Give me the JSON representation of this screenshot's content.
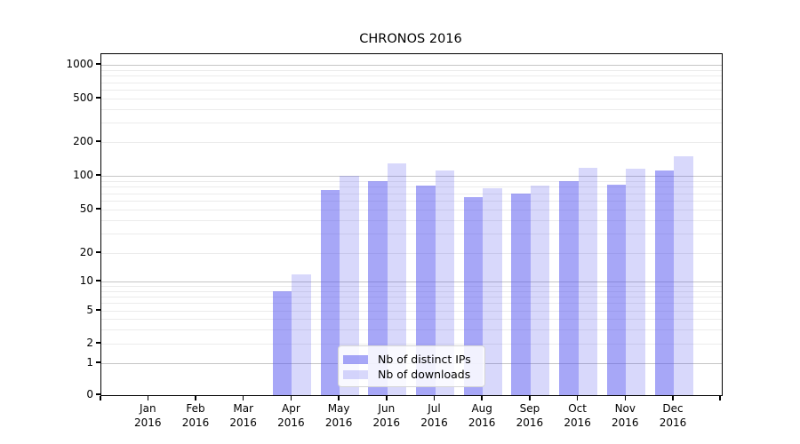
{
  "figure": {
    "title": "CHRONOS 2016",
    "background": "#ffffff"
  },
  "chart_data": {
    "type": "bar",
    "title": "CHRONOS 2016",
    "categories": [
      "Jan 2016",
      "Feb 2016",
      "Mar 2016",
      "Apr 2016",
      "May 2016",
      "Jun 2016",
      "Jul 2016",
      "Aug 2016",
      "Sep 2016",
      "Oct 2016",
      "Nov 2016",
      "Dec 2016"
    ],
    "series": [
      {
        "name": "Nb of distinct IPs",
        "color_hex": "#a7a7f3",
        "color_rgba": "rgba(86,86,240,0.52)",
        "values": [
          0,
          0,
          0,
          8,
          75,
          90,
          82,
          65,
          70,
          90,
          84,
          112
        ]
      },
      {
        "name": "Nb of downloads",
        "color_hex": "#d8d8f8",
        "color_rgba": "rgba(70,70,235,0.21)",
        "values": [
          0,
          0,
          0,
          12,
          100,
          130,
          112,
          78,
          82,
          118,
          116,
          150
        ]
      }
    ],
    "yscale": "symlog",
    "yticks": [
      0,
      1,
      2,
      5,
      10,
      20,
      50,
      100,
      200,
      500,
      1000
    ],
    "ylim": [
      0,
      1200
    ],
    "xlabel": "",
    "ylabel": "",
    "grid": "horizontal major and minor gridlines",
    "legend_position": "lower-center-inside"
  },
  "colors": {
    "grid_major": "#c6c6c6",
    "grid_minor": "#ebebeb",
    "axis_spine": "#000000",
    "text": "#000000"
  }
}
